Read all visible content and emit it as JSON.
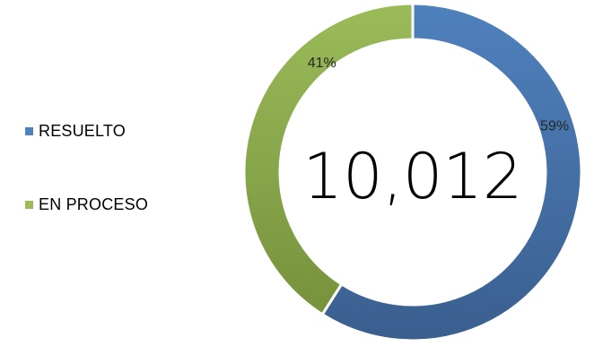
{
  "chart_data": {
    "type": "pie",
    "title": "",
    "center_label": "10,012",
    "legend_position": "left",
    "categories": [
      "RESUELTO",
      "EN PROCESO"
    ],
    "values": [
      59,
      41
    ],
    "value_labels": [
      "59%",
      "41%"
    ],
    "colors": [
      "#4F81BD",
      "#9BBB59"
    ],
    "colors_dark": [
      "#3A5F8F",
      "#76923C"
    ]
  }
}
